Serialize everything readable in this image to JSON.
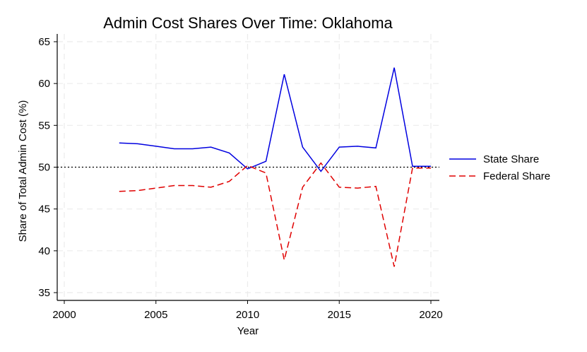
{
  "chart_data": {
    "type": "line",
    "title": "Admin Cost Shares Over Time: Oklahoma",
    "xlabel": "Year",
    "ylabel": "Share of Total Admin Cost (%)",
    "xlim": [
      2000,
      2020
    ],
    "ylim": [
      35,
      65
    ],
    "xticks": [
      2000,
      2005,
      2010,
      2015,
      2020
    ],
    "yticks": [
      35,
      40,
      45,
      50,
      55,
      60,
      65
    ],
    "grid": true,
    "legend_position": "right",
    "reference_line": {
      "y": 50,
      "style": "dotted",
      "color": "#000000"
    },
    "x": [
      2003,
      2004,
      2005,
      2006,
      2007,
      2008,
      2009,
      2010,
      2011,
      2012,
      2013,
      2014,
      2015,
      2016,
      2017,
      2018,
      2019,
      2020
    ],
    "series": [
      {
        "name": "State Share",
        "color": "#0000e0",
        "style": "solid",
        "values": [
          52.9,
          52.8,
          52.5,
          52.2,
          52.2,
          52.4,
          51.7,
          49.8,
          50.7,
          61.1,
          52.4,
          49.5,
          52.4,
          52.5,
          52.3,
          61.9,
          50.1,
          50.1
        ]
      },
      {
        "name": "Federal Share",
        "color": "#e00000",
        "style": "dashed",
        "values": [
          47.1,
          47.2,
          47.5,
          47.8,
          47.8,
          47.6,
          48.3,
          50.2,
          49.3,
          38.9,
          47.6,
          50.5,
          47.6,
          47.5,
          47.7,
          38.1,
          49.9,
          49.9
        ]
      }
    ]
  }
}
